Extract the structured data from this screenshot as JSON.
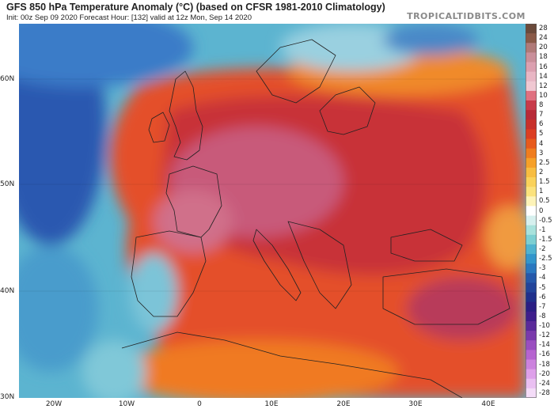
{
  "header": {
    "title": "GFS 850 hPa Temperature Anomaly (°C) (based on CFSR 1981-2010 Climatology)",
    "subtitle": "Init: 00z Sep 09 2020   Forecast Hour: [132]   valid at 12z Mon, Sep 14 2020",
    "brand": "TROPICALTIDBITS.COM"
  },
  "map": {
    "latitude_labels": [
      "60N",
      "50N",
      "40N",
      "30N"
    ],
    "longitude_labels": [
      "20W",
      "10W",
      "0",
      "10E",
      "20E",
      "30E",
      "40E"
    ]
  },
  "colorbar": {
    "labels": [
      "28",
      "24",
      "20",
      "18",
      "16",
      "14",
      "12",
      "10",
      "8",
      "7",
      "6",
      "5",
      "4",
      "3",
      "2.5",
      "2",
      "1.5",
      "1",
      "0.5",
      "0",
      "-0.5",
      "-1",
      "-1.5",
      "-2",
      "-2.5",
      "-3",
      "-4",
      "-5",
      "-6",
      "-7",
      "-8",
      "-10",
      "-12",
      "-14",
      "-16",
      "-18",
      "-20",
      "-24",
      "-28"
    ],
    "colors": [
      "#6b4a3a",
      "#8a5a48",
      "#b07a78",
      "#c98f9a",
      "#dba0b0",
      "#e8b6c4",
      "#f0c8d2",
      "#e07080",
      "#c83a4a",
      "#b82a38",
      "#c8302a",
      "#dc3e22",
      "#e85a1c",
      "#f07d1e",
      "#f6a028",
      "#f8bd40",
      "#fad25a",
      "#fbe27c",
      "#fdf3b8",
      "#ffffff",
      "#d6f0ee",
      "#a8e2dc",
      "#7ccfd2",
      "#4fb3d0",
      "#3396cc",
      "#2a78c0",
      "#2558aa",
      "#22449a",
      "#20308c",
      "#2a1e84",
      "#3e1e8c",
      "#5a2a9a",
      "#7a3aac",
      "#9a4ec0",
      "#b664d0",
      "#cc82de",
      "#dea0ea",
      "#eac0f2",
      "#f4dcf8"
    ]
  }
}
